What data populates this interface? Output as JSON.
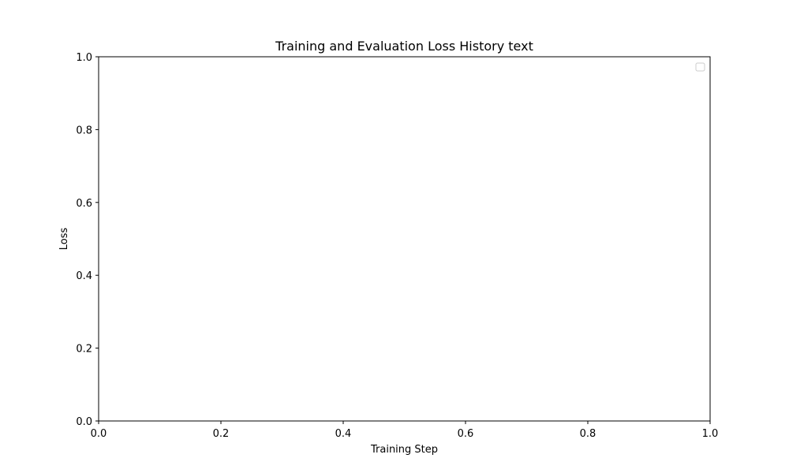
{
  "chart_data": {
    "type": "line",
    "title": "Training and Evaluation Loss History text",
    "xlabel": "Training Step",
    "ylabel": "Loss",
    "xlim": [
      0,
      1
    ],
    "ylim": [
      0,
      1
    ],
    "x_ticks": [
      0.0,
      0.2,
      0.4,
      0.6,
      0.8,
      1.0
    ],
    "x_tick_labels": [
      "0.0",
      "0.2",
      "0.4",
      "0.6",
      "0.8",
      "1.0"
    ],
    "y_ticks": [
      0.0,
      0.2,
      0.4,
      0.6,
      0.8,
      1.0
    ],
    "y_tick_labels": [
      "0.0",
      "0.2",
      "0.4",
      "0.6",
      "0.8",
      "1.0"
    ],
    "series": [],
    "grid": false,
    "legend": {
      "placement": "top-right",
      "entries": []
    }
  }
}
